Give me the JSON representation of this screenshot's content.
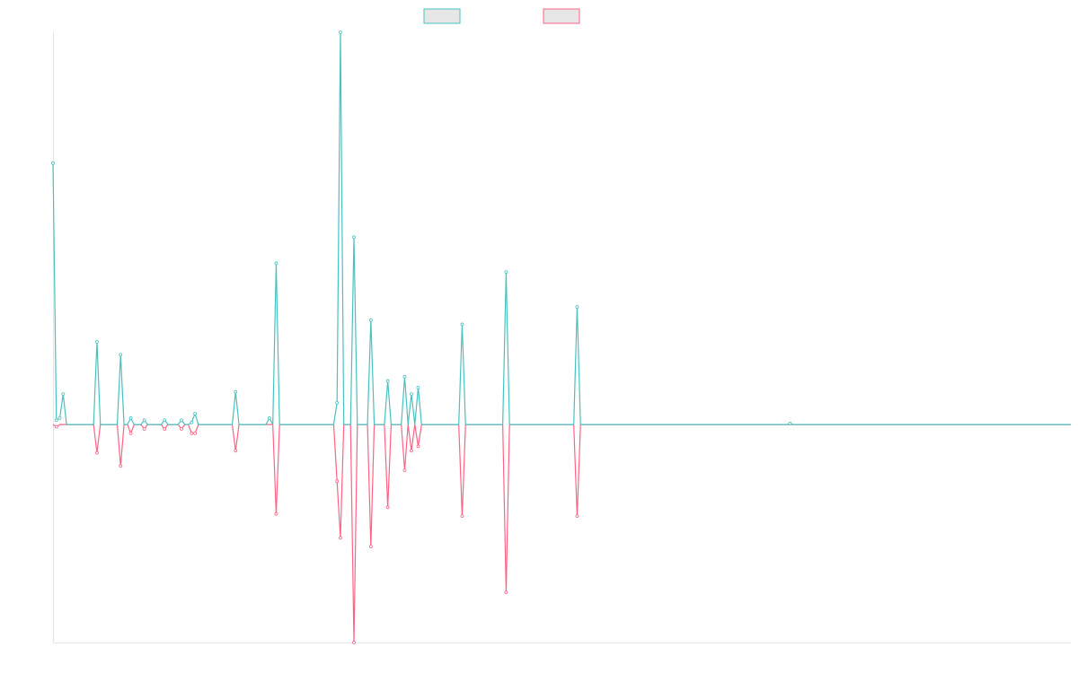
{
  "chart_data": {
    "type": "line",
    "title": "",
    "xlabel": "",
    "ylabel": "",
    "grid": false,
    "legend_position": "top-center",
    "colors": {
      "series_a": "#4bc0c0",
      "series_b": "#ff6384",
      "legend_fill": "#e6e6e6",
      "axis": "#e5e5e5"
    },
    "x_count": 302,
    "ylim": [
      -100,
      180
    ],
    "series": [
      {
        "points": [
          [
            0,
            120
          ],
          [
            1,
            2
          ],
          [
            2,
            3
          ],
          [
            3,
            14
          ],
          [
            13,
            38
          ],
          [
            20,
            32
          ],
          [
            23,
            3
          ],
          [
            27,
            2
          ],
          [
            33,
            2
          ],
          [
            38,
            2
          ],
          [
            41,
            1
          ],
          [
            42,
            5
          ],
          [
            54,
            15
          ],
          [
            64,
            3
          ],
          [
            66,
            74
          ],
          [
            84,
            10
          ],
          [
            85,
            180
          ],
          [
            89,
            86
          ],
          [
            94,
            48
          ],
          [
            99,
            20
          ],
          [
            104,
            22
          ],
          [
            106,
            14
          ],
          [
            108,
            17
          ],
          [
            121,
            46
          ],
          [
            134,
            70
          ],
          [
            155,
            54
          ],
          [
            218,
            0.5
          ]
        ]
      },
      {
        "points": [
          [
            1,
            -1
          ],
          [
            13,
            -13
          ],
          [
            20,
            -19
          ],
          [
            23,
            -4
          ],
          [
            27,
            -2
          ],
          [
            33,
            -2
          ],
          [
            38,
            -2
          ],
          [
            41,
            -4
          ],
          [
            42,
            -4
          ],
          [
            54,
            -12
          ],
          [
            66,
            -41
          ],
          [
            84,
            -26
          ],
          [
            85,
            -52
          ],
          [
            89,
            -100
          ],
          [
            94,
            -56
          ],
          [
            99,
            -38
          ],
          [
            104,
            -21
          ],
          [
            106,
            -12
          ],
          [
            108,
            -10
          ],
          [
            121,
            -42
          ],
          [
            134,
            -77
          ],
          [
            155,
            -42
          ]
        ]
      }
    ]
  }
}
